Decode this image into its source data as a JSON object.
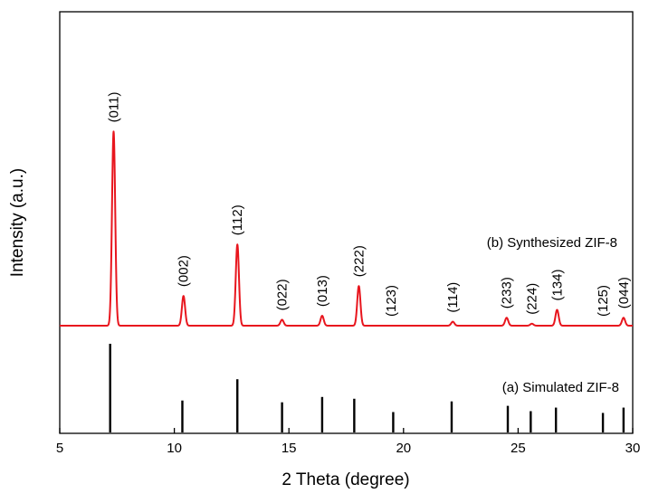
{
  "chart_data": {
    "type": "line",
    "xlabel": "2 Theta (degree)",
    "ylabel": "Intensity (a.u.)",
    "xlim": [
      5,
      30
    ],
    "xticks": [
      "5",
      "10",
      "15",
      "20",
      "25",
      "30"
    ],
    "grid": false,
    "y_tick_labels": false,
    "series": [
      {
        "name": "(b) Synthesized ZIF-8",
        "kind": "line",
        "color": "#e8161e",
        "baseline": 0.02,
        "peaks": [
          {
            "x": 7.35,
            "y": 1.0,
            "label": "(011)"
          },
          {
            "x": 10.4,
            "y": 0.17,
            "label": "(002)"
          },
          {
            "x": 11.05,
            "y": 0.02,
            "label": ""
          },
          {
            "x": 12.75,
            "y": 0.43,
            "label": "(112)"
          },
          {
            "x": 14.7,
            "y": 0.05,
            "label": "(022)"
          },
          {
            "x": 16.45,
            "y": 0.07,
            "label": "(013)"
          },
          {
            "x": 18.05,
            "y": 0.22,
            "label": "(222)"
          },
          {
            "x": 19.45,
            "y": 0.02,
            "label": "(123)"
          },
          {
            "x": 22.15,
            "y": 0.04,
            "label": "(114)"
          },
          {
            "x": 24.5,
            "y": 0.06,
            "label": "(233)"
          },
          {
            "x": 25.6,
            "y": 0.03,
            "label": "(224)"
          },
          {
            "x": 26.7,
            "y": 0.1,
            "label": "(134)"
          },
          {
            "x": 28.7,
            "y": 0.01,
            "label": "(125)"
          },
          {
            "x": 29.6,
            "y": 0.06,
            "label": "(044)"
          }
        ]
      },
      {
        "name": "(a) Simulated ZIF-8",
        "kind": "stick",
        "color": "#000000",
        "x": [
          7.2,
          10.35,
          12.75,
          14.7,
          16.45,
          17.85,
          19.55,
          22.1,
          24.55,
          25.55,
          26.65,
          28.7,
          29.6
        ],
        "y": [
          1.0,
          0.36,
          0.6,
          0.34,
          0.4,
          0.38,
          0.23,
          0.35,
          0.3,
          0.24,
          0.28,
          0.22,
          0.28
        ]
      }
    ]
  }
}
